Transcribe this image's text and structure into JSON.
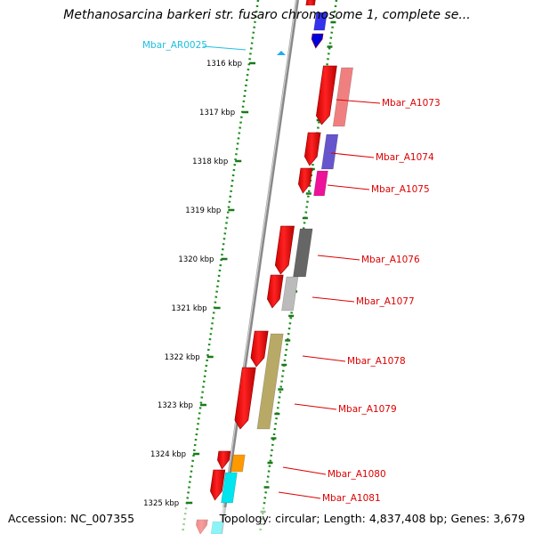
{
  "title": "Methanosarcina barkeri str. fusaro chromosome 1, complete se...",
  "footer": {
    "accession": "Accession: NC_007355",
    "summary": "Topology: circular; Length: 4,837,408 bp; Genes: 3,679"
  },
  "ruler": {
    "ticks": [
      "1316 kbp",
      "1317 kbp",
      "1318 kbp",
      "1319 kbp",
      "1320 kbp",
      "1321 kbp",
      "1322 kbp",
      "1323 kbp",
      "1324 kbp",
      "1325 kbp"
    ],
    "tick_color": "#1a7a1a"
  },
  "genes": [
    {
      "id": "Mbar_AR0025",
      "color": "#1ec0e0"
    },
    {
      "id": "Mbar_A1073",
      "color": "#dd0000"
    },
    {
      "id": "Mbar_A1074",
      "color": "#dd0000"
    },
    {
      "id": "Mbar_A1075",
      "color": "#dd0000"
    },
    {
      "id": "Mbar_A1076",
      "color": "#dd0000"
    },
    {
      "id": "Mbar_A1077",
      "color": "#dd0000"
    },
    {
      "id": "Mbar_A1078",
      "color": "#dd0000"
    },
    {
      "id": "Mbar_A1079",
      "color": "#dd0000"
    },
    {
      "id": "Mbar_A1080",
      "color": "#dd0000"
    },
    {
      "id": "Mbar_A1081",
      "color": "#dd0000"
    }
  ],
  "feature_colors": {
    "cds": "#ee0000",
    "rna": "#0000dd",
    "cog_pink": "#f08080",
    "cog_purple": "#6655cc",
    "cog_magenta": "#ee1199",
    "cog_dark_gray": "#666666",
    "cog_light_gray": "#bbbbbb",
    "cog_olive": "#b8aa66",
    "cog_orange": "#ff9900",
    "cog_cyan": "#00e5ee"
  }
}
